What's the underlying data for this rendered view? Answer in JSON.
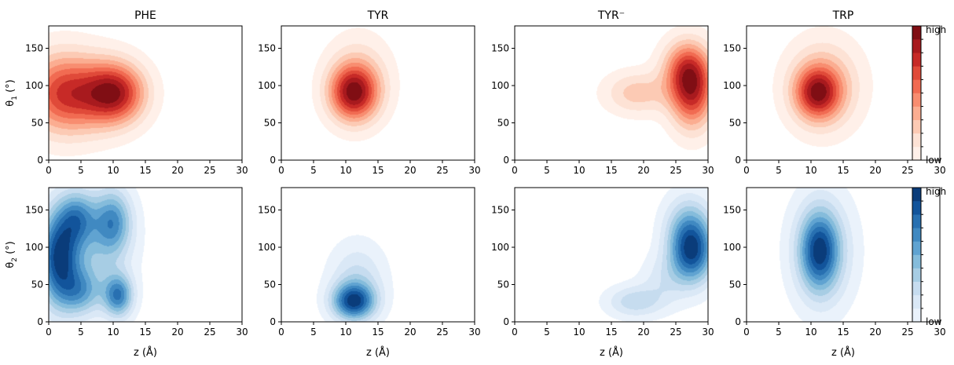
{
  "chart_data": {
    "type": "heatmap",
    "figure": "2x4 grid of kernel-density contour plots",
    "shared": {
      "x_axis": {
        "label": "z (Å)",
        "range": [
          0,
          30
        ],
        "ticks": [
          0,
          5,
          10,
          15,
          20,
          25,
          30
        ]
      },
      "y_axis": {
        "range": [
          0,
          180
        ],
        "ticks": [
          0,
          50,
          100,
          150
        ]
      },
      "rows": [
        {
          "ylabel_main": "θ",
          "ylabel_sub": "1",
          "ylabel_unit": " (°)",
          "colormap": "Reds",
          "colors": [
            "#fff0e9",
            "#fde2d5",
            "#fccab4",
            "#fbad91",
            "#f88d70",
            "#f16b52",
            "#e04a39",
            "#c72a27",
            "#a81a1e",
            "#800e14"
          ]
        },
        {
          "ylabel_main": "θ",
          "ylabel_sub": "2",
          "ylabel_unit": " (°)",
          "colormap": "Blues",
          "colors": [
            "#eaf2fb",
            "#dae8f6",
            "#c6dcef",
            "#a7cde4",
            "#85bcdb",
            "#60a3d1",
            "#4089c1",
            "#2870b1",
            "#12549b",
            "#0a3c7a"
          ]
        }
      ],
      "colorbar": {
        "high_label": "high",
        "low_label": "low"
      },
      "contour_levels": 10
    },
    "panels": [
      {
        "row": 0,
        "col": 0,
        "title": "PHE",
        "peaks": [
          {
            "z": 10.5,
            "theta": 90,
            "amp": 1.0,
            "sz": 3.2,
            "st": 28
          },
          {
            "z": 1.5,
            "theta": 90,
            "amp": 0.72,
            "sz": 4.0,
            "st": 38
          },
          {
            "z": 6.0,
            "theta": 88,
            "amp": 0.5,
            "sz": 4.5,
            "st": 36
          }
        ]
      },
      {
        "row": 0,
        "col": 1,
        "title": "TYR",
        "peaks": [
          {
            "z": 11.2,
            "theta": 90,
            "amp": 1.0,
            "sz": 2.6,
            "st": 26
          },
          {
            "z": 12.0,
            "theta": 110,
            "amp": 0.3,
            "sz": 3.5,
            "st": 40
          }
        ]
      },
      {
        "row": 0,
        "col": 2,
        "title": "TYR⁻",
        "peaks": [
          {
            "z": 27.5,
            "theta": 92,
            "amp": 1.0,
            "sz": 2.4,
            "st": 35
          },
          {
            "z": 26.5,
            "theta": 125,
            "amp": 0.55,
            "sz": 2.6,
            "st": 26
          },
          {
            "z": 19.0,
            "theta": 90,
            "amp": 0.4,
            "sz": 3.5,
            "st": 20
          }
        ]
      },
      {
        "row": 0,
        "col": 3,
        "title": "TRP",
        "peaks": [
          {
            "z": 11.0,
            "theta": 90,
            "amp": 1.0,
            "sz": 2.4,
            "st": 24
          },
          {
            "z": 12.0,
            "theta": 100,
            "amp": 0.55,
            "sz": 4.0,
            "st": 42
          }
        ]
      },
      {
        "row": 1,
        "col": 0,
        "title": "",
        "peaks": [
          {
            "z": 1.5,
            "theta": 85,
            "amp": 1.0,
            "sz": 2.2,
            "st": 45
          },
          {
            "z": 10.8,
            "theta": 35,
            "amp": 0.78,
            "sz": 1.6,
            "st": 20
          },
          {
            "z": 10.0,
            "theta": 135,
            "amp": 0.62,
            "sz": 2.0,
            "st": 30
          },
          {
            "z": 4.5,
            "theta": 140,
            "amp": 0.55,
            "sz": 2.0,
            "st": 25
          },
          {
            "z": 5.0,
            "theta": 40,
            "amp": 0.5,
            "sz": 2.2,
            "st": 22
          },
          {
            "z": 7.0,
            "theta": 100,
            "amp": 0.35,
            "sz": 4.0,
            "st": 50
          }
        ]
      },
      {
        "row": 1,
        "col": 1,
        "title": "",
        "peaks": [
          {
            "z": 11.2,
            "theta": 27,
            "amp": 1.0,
            "sz": 2.3,
            "st": 17
          },
          {
            "z": 11.8,
            "theta": 55,
            "amp": 0.35,
            "sz": 3.0,
            "st": 35
          }
        ]
      },
      {
        "row": 1,
        "col": 2,
        "title": "",
        "peaks": [
          {
            "z": 27.5,
            "theta": 92,
            "amp": 1.0,
            "sz": 2.4,
            "st": 30
          },
          {
            "z": 27.0,
            "theta": 130,
            "amp": 0.45,
            "sz": 2.6,
            "st": 30
          },
          {
            "z": 18.5,
            "theta": 27,
            "amp": 0.38,
            "sz": 3.0,
            "st": 15
          },
          {
            "z": 23.0,
            "theta": 55,
            "amp": 0.22,
            "sz": 2.5,
            "st": 25
          }
        ]
      },
      {
        "row": 1,
        "col": 3,
        "title": "",
        "peaks": [
          {
            "z": 11.3,
            "theta": 95,
            "amp": 1.0,
            "sz": 2.1,
            "st": 36
          },
          {
            "z": 11.8,
            "theta": 95,
            "amp": 0.45,
            "sz": 3.5,
            "st": 55
          }
        ]
      }
    ]
  }
}
